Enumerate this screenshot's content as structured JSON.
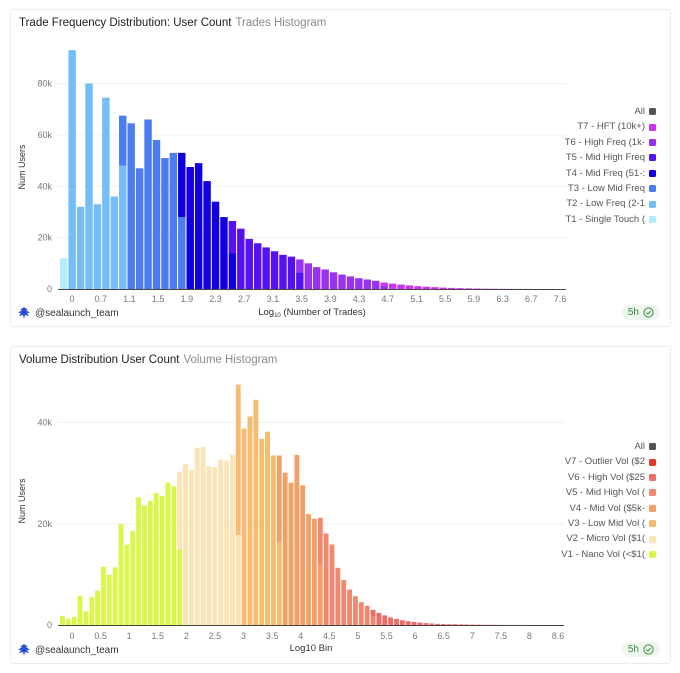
{
  "chart_data": [
    {
      "type": "bar",
      "title": "Trade Frequency Distribution: User Count",
      "subtitle": "Trades Histogram",
      "xlabel_main": "Log",
      "xlabel_sub": "10",
      "xlabel_rest": " (Number of Trades)",
      "ylabel": "Num Users",
      "ylim": [
        0,
        95000
      ],
      "yticks": [
        {
          "v": 0,
          "label": "0"
        },
        {
          "v": 20000,
          "label": "20k"
        },
        {
          "v": 40000,
          "label": "40k"
        },
        {
          "v": 60000,
          "label": "60k"
        },
        {
          "v": 80000,
          "label": "80k"
        }
      ],
      "xticks": [
        "0",
        "0.7",
        "1.1",
        "1.5",
        "1.9",
        "2.3",
        "2.7",
        "3.1",
        "3.5",
        "3.9",
        "4.3",
        "4.7",
        "5.1",
        "5.5",
        "5.9",
        "6.3",
        "6.7",
        "7.6"
      ],
      "bin_count": 60,
      "grid": true,
      "legend_position": "right",
      "legend": [
        {
          "label": "All",
          "color": "#555555"
        },
        {
          "label": "T7 - HFT (10k+)",
          "color": "#cc33ee"
        },
        {
          "label": "T6 - High Freq (1k-",
          "color": "#9933ee"
        },
        {
          "label": "T5 - Mid High Freq",
          "color": "#5511ee"
        },
        {
          "label": "T4 - Mid Freq (51-:",
          "color": "#1100dd"
        },
        {
          "label": "T3 - Low Mid Freq",
          "color": "#4d7bf0"
        },
        {
          "label": "T2 - Low Freq (2-1",
          "color": "#74bdf7"
        },
        {
          "label": "T1 - Single Touch (",
          "color": "#b3ecfb"
        }
      ],
      "bars": [
        {
          "v": 12000,
          "c": "#b3ecfb"
        },
        {
          "v": 93000,
          "c": "#74bdf7"
        },
        {
          "v": 32000,
          "c": "#74bdf7"
        },
        {
          "v": 80000,
          "c": "#74bdf7"
        },
        {
          "v": 33000,
          "c": "#74bdf7"
        },
        {
          "v": 74500,
          "c": "#74bdf7"
        },
        {
          "v": 36000,
          "c": "#74bdf7"
        },
        {
          "v": 67500,
          "c": "#74bdf7",
          "top": "#4d7bf0",
          "split": 48000
        },
        {
          "v": 64500,
          "c": "#4d7bf0"
        },
        {
          "v": 47000,
          "c": "#4d7bf0"
        },
        {
          "v": 66000,
          "c": "#4d7bf0"
        },
        {
          "v": 58000,
          "c": "#4d7bf0"
        },
        {
          "v": 51000,
          "c": "#4d7bf0"
        },
        {
          "v": 53000,
          "c": "#4d7bf0"
        },
        {
          "v": 53000,
          "c": "#4d7bf0",
          "top": "#1100dd",
          "split": 28000
        },
        {
          "v": 47500,
          "c": "#1100dd"
        },
        {
          "v": 49000,
          "c": "#1100dd"
        },
        {
          "v": 42000,
          "c": "#1100dd"
        },
        {
          "v": 34000,
          "c": "#1100dd"
        },
        {
          "v": 28000,
          "c": "#1100dd"
        },
        {
          "v": 26500,
          "c": "#1100dd",
          "top": "#5511ee",
          "split": 14000
        },
        {
          "v": 23500,
          "c": "#5511ee"
        },
        {
          "v": 19500,
          "c": "#5511ee"
        },
        {
          "v": 17800,
          "c": "#5511ee"
        },
        {
          "v": 16200,
          "c": "#5511ee"
        },
        {
          "v": 14700,
          "c": "#5511ee"
        },
        {
          "v": 13300,
          "c": "#5511ee"
        },
        {
          "v": 12600,
          "c": "#5511ee"
        },
        {
          "v": 11500,
          "c": "#5511ee",
          "top": "#9933ee",
          "split": 6500
        },
        {
          "v": 10000,
          "c": "#9933ee"
        },
        {
          "v": 8500,
          "c": "#9933ee"
        },
        {
          "v": 7600,
          "c": "#9933ee"
        },
        {
          "v": 6500,
          "c": "#9933ee"
        },
        {
          "v": 5600,
          "c": "#9933ee"
        },
        {
          "v": 4900,
          "c": "#9933ee"
        },
        {
          "v": 4200,
          "c": "#9933ee"
        },
        {
          "v": 3700,
          "c": "#9933ee"
        },
        {
          "v": 3200,
          "c": "#9933ee"
        },
        {
          "v": 2500,
          "c": "#9933ee",
          "top": "#cc33ee",
          "split": 1200
        },
        {
          "v": 2100,
          "c": "#cc33ee"
        },
        {
          "v": 1700,
          "c": "#cc33ee"
        },
        {
          "v": 1400,
          "c": "#cc33ee"
        },
        {
          "v": 1100,
          "c": "#cc33ee"
        },
        {
          "v": 900,
          "c": "#cc33ee"
        },
        {
          "v": 700,
          "c": "#cc33ee"
        },
        {
          "v": 550,
          "c": "#cc33ee"
        },
        {
          "v": 420,
          "c": "#cc33ee"
        },
        {
          "v": 320,
          "c": "#cc33ee"
        },
        {
          "v": 240,
          "c": "#cc33ee"
        },
        {
          "v": 180,
          "c": "#cc33ee"
        },
        {
          "v": 130,
          "c": "#cc33ee"
        },
        {
          "v": 100,
          "c": "#cc33ee"
        },
        {
          "v": 70,
          "c": "#cc33ee"
        },
        {
          "v": 50,
          "c": "#cc33ee"
        },
        {
          "v": 35,
          "c": "#cc33ee"
        },
        {
          "v": 25,
          "c": "#cc33ee"
        },
        {
          "v": 15,
          "c": "#cc33ee"
        },
        {
          "v": 10,
          "c": "#cc33ee"
        },
        {
          "v": 5,
          "c": "#cc33ee"
        },
        {
          "v": 3,
          "c": "#cc33ee"
        }
      ]
    },
    {
      "type": "bar",
      "title": "Volume Distribution User Count",
      "subtitle": "Volume Histogram",
      "xlabel_main": "Log10 Bin",
      "xlabel_sub": "",
      "xlabel_rest": "",
      "ylabel": "Num Users",
      "ylim": [
        0,
        49000
      ],
      "yticks": [
        {
          "v": 0,
          "label": "0"
        },
        {
          "v": 20000,
          "label": "20k"
        },
        {
          "v": 40000,
          "label": "40k"
        }
      ],
      "xticks": [
        "0",
        "0.5",
        "1",
        "1.5",
        "2",
        "2.5",
        "3",
        "3.5",
        "4",
        "4.5",
        "5",
        "5.5",
        "6",
        "6.5",
        "7",
        "7.5",
        "8",
        "8.6"
      ],
      "bin_count": 86,
      "grid": true,
      "legend_position": "right",
      "legend": [
        {
          "label": "All",
          "color": "#555555"
        },
        {
          "label": "V7 - Outlier Vol ($2",
          "color": "#e23a2a"
        },
        {
          "label": "V6 - High Vol ($25",
          "color": "#ec6e66"
        },
        {
          "label": "V5 - Mid High Vol (",
          "color": "#ef8a70"
        },
        {
          "label": "V4 - Mid Vol ($5k-",
          "color": "#f3a066"
        },
        {
          "label": "V3 - Low Mid Vol (",
          "color": "#f5bb6e"
        },
        {
          "label": "V2 - Micro Vol ($1(",
          "color": "#fbe3b5"
        },
        {
          "label": "V1 - Nano Vol (<$1(",
          "color": "#dcf54a"
        }
      ],
      "bars": [
        {
          "v": 1800,
          "c": "#dcf54a"
        },
        {
          "v": 1200,
          "c": "#dcf54a"
        },
        {
          "v": 1600,
          "c": "#dcf54a"
        },
        {
          "v": 5800,
          "c": "#dcf54a"
        },
        {
          "v": 2700,
          "c": "#dcf54a"
        },
        {
          "v": 5500,
          "c": "#dcf54a"
        },
        {
          "v": 6800,
          "c": "#dcf54a"
        },
        {
          "v": 11500,
          "c": "#dcf54a"
        },
        {
          "v": 9900,
          "c": "#dcf54a"
        },
        {
          "v": 11400,
          "c": "#dcf54a"
        },
        {
          "v": 20000,
          "c": "#dcf54a"
        },
        {
          "v": 15900,
          "c": "#dcf54a"
        },
        {
          "v": 18600,
          "c": "#dcf54a"
        },
        {
          "v": 25200,
          "c": "#dcf54a"
        },
        {
          "v": 23600,
          "c": "#dcf54a"
        },
        {
          "v": 24500,
          "c": "#dcf54a"
        },
        {
          "v": 26100,
          "c": "#dcf54a"
        },
        {
          "v": 25500,
          "c": "#dcf54a"
        },
        {
          "v": 28100,
          "c": "#dcf54a"
        },
        {
          "v": 27400,
          "c": "#dcf54a"
        },
        {
          "v": 30300,
          "c": "#dcf54a",
          "top": "#fbe3b5",
          "split": 15000
        },
        {
          "v": 31800,
          "c": "#fbe3b5"
        },
        {
          "v": 30700,
          "c": "#fbe3b5"
        },
        {
          "v": 35000,
          "c": "#fbe3b5"
        },
        {
          "v": 35200,
          "c": "#fbe3b5"
        },
        {
          "v": 31400,
          "c": "#fbe3b5"
        },
        {
          "v": 31200,
          "c": "#fbe3b5"
        },
        {
          "v": 32700,
          "c": "#fbe3b5"
        },
        {
          "v": 32500,
          "c": "#fbe3b5"
        },
        {
          "v": 33600,
          "c": "#fbe3b5"
        },
        {
          "v": 47500,
          "c": "#fbe3b5",
          "top": "#f5bb6e",
          "split": 17800
        },
        {
          "v": 38800,
          "c": "#f5bb6e"
        },
        {
          "v": 41200,
          "c": "#f5bb6e"
        },
        {
          "v": 44500,
          "c": "#f5bb6e"
        },
        {
          "v": 36800,
          "c": "#f5bb6e"
        },
        {
          "v": 38200,
          "c": "#f5bb6e"
        },
        {
          "v": 33500,
          "c": "#f5bb6e"
        },
        {
          "v": 33500,
          "c": "#f5bb6e",
          "top": "#f3a066",
          "split": 16400
        },
        {
          "v": 30100,
          "c": "#f3a066"
        },
        {
          "v": 28100,
          "c": "#f3a066"
        },
        {
          "v": 33600,
          "c": "#f3a066"
        },
        {
          "v": 27600,
          "c": "#f3a066"
        },
        {
          "v": 21900,
          "c": "#f3a066"
        },
        {
          "v": 21000,
          "c": "#f3a066"
        },
        {
          "v": 21200,
          "c": "#f3a066",
          "top": "#ef8a70",
          "split": 12000
        },
        {
          "v": 18100,
          "c": "#ef8a70"
        },
        {
          "v": 15900,
          "c": "#ef8a70"
        },
        {
          "v": 11300,
          "c": "#ef8a70"
        },
        {
          "v": 8900,
          "c": "#ef8a70"
        },
        {
          "v": 7000,
          "c": "#ef8a70"
        },
        {
          "v": 5700,
          "c": "#ef8a70"
        },
        {
          "v": 4500,
          "c": "#ef8a70"
        },
        {
          "v": 3800,
          "c": "#ef8a70"
        },
        {
          "v": 3000,
          "c": "#ef8a70",
          "top": "#ec6e66",
          "split": 1600
        },
        {
          "v": 2400,
          "c": "#ec6e66"
        },
        {
          "v": 1900,
          "c": "#ec6e66"
        },
        {
          "v": 1500,
          "c": "#ec6e66"
        },
        {
          "v": 1200,
          "c": "#ec6e66"
        },
        {
          "v": 950,
          "c": "#ec6e66"
        },
        {
          "v": 750,
          "c": "#ec6e66"
        },
        {
          "v": 600,
          "c": "#ec6e66"
        },
        {
          "v": 480,
          "c": "#ec6e66"
        },
        {
          "v": 380,
          "c": "#ec6e66"
        },
        {
          "v": 300,
          "c": "#ec6e66"
        },
        {
          "v": 240,
          "c": "#ec6e66"
        },
        {
          "v": 190,
          "c": "#ec6e66"
        },
        {
          "v": 150,
          "c": "#ec6e66"
        },
        {
          "v": 120,
          "c": "#e23a2a"
        },
        {
          "v": 95,
          "c": "#e23a2a"
        },
        {
          "v": 75,
          "c": "#e23a2a"
        },
        {
          "v": 60,
          "c": "#e23a2a"
        },
        {
          "v": 48,
          "c": "#e23a2a"
        },
        {
          "v": 38,
          "c": "#e23a2a"
        },
        {
          "v": 30,
          "c": "#e23a2a"
        },
        {
          "v": 24,
          "c": "#e23a2a"
        },
        {
          "v": 19,
          "c": "#e23a2a"
        },
        {
          "v": 15,
          "c": "#e23a2a"
        },
        {
          "v": 12,
          "c": "#e23a2a"
        },
        {
          "v": 9,
          "c": "#e23a2a"
        },
        {
          "v": 7,
          "c": "#e23a2a"
        },
        {
          "v": 5,
          "c": "#e23a2a"
        },
        {
          "v": 4,
          "c": "#e23a2a"
        },
        {
          "v": 3,
          "c": "#e23a2a"
        },
        {
          "v": 2,
          "c": "#e23a2a"
        },
        {
          "v": 2,
          "c": "#e23a2a"
        },
        {
          "v": 1,
          "c": "#e23a2a"
        }
      ]
    }
  ],
  "footer": {
    "handle": "@sealaunch_team",
    "freshness": "5h"
  }
}
